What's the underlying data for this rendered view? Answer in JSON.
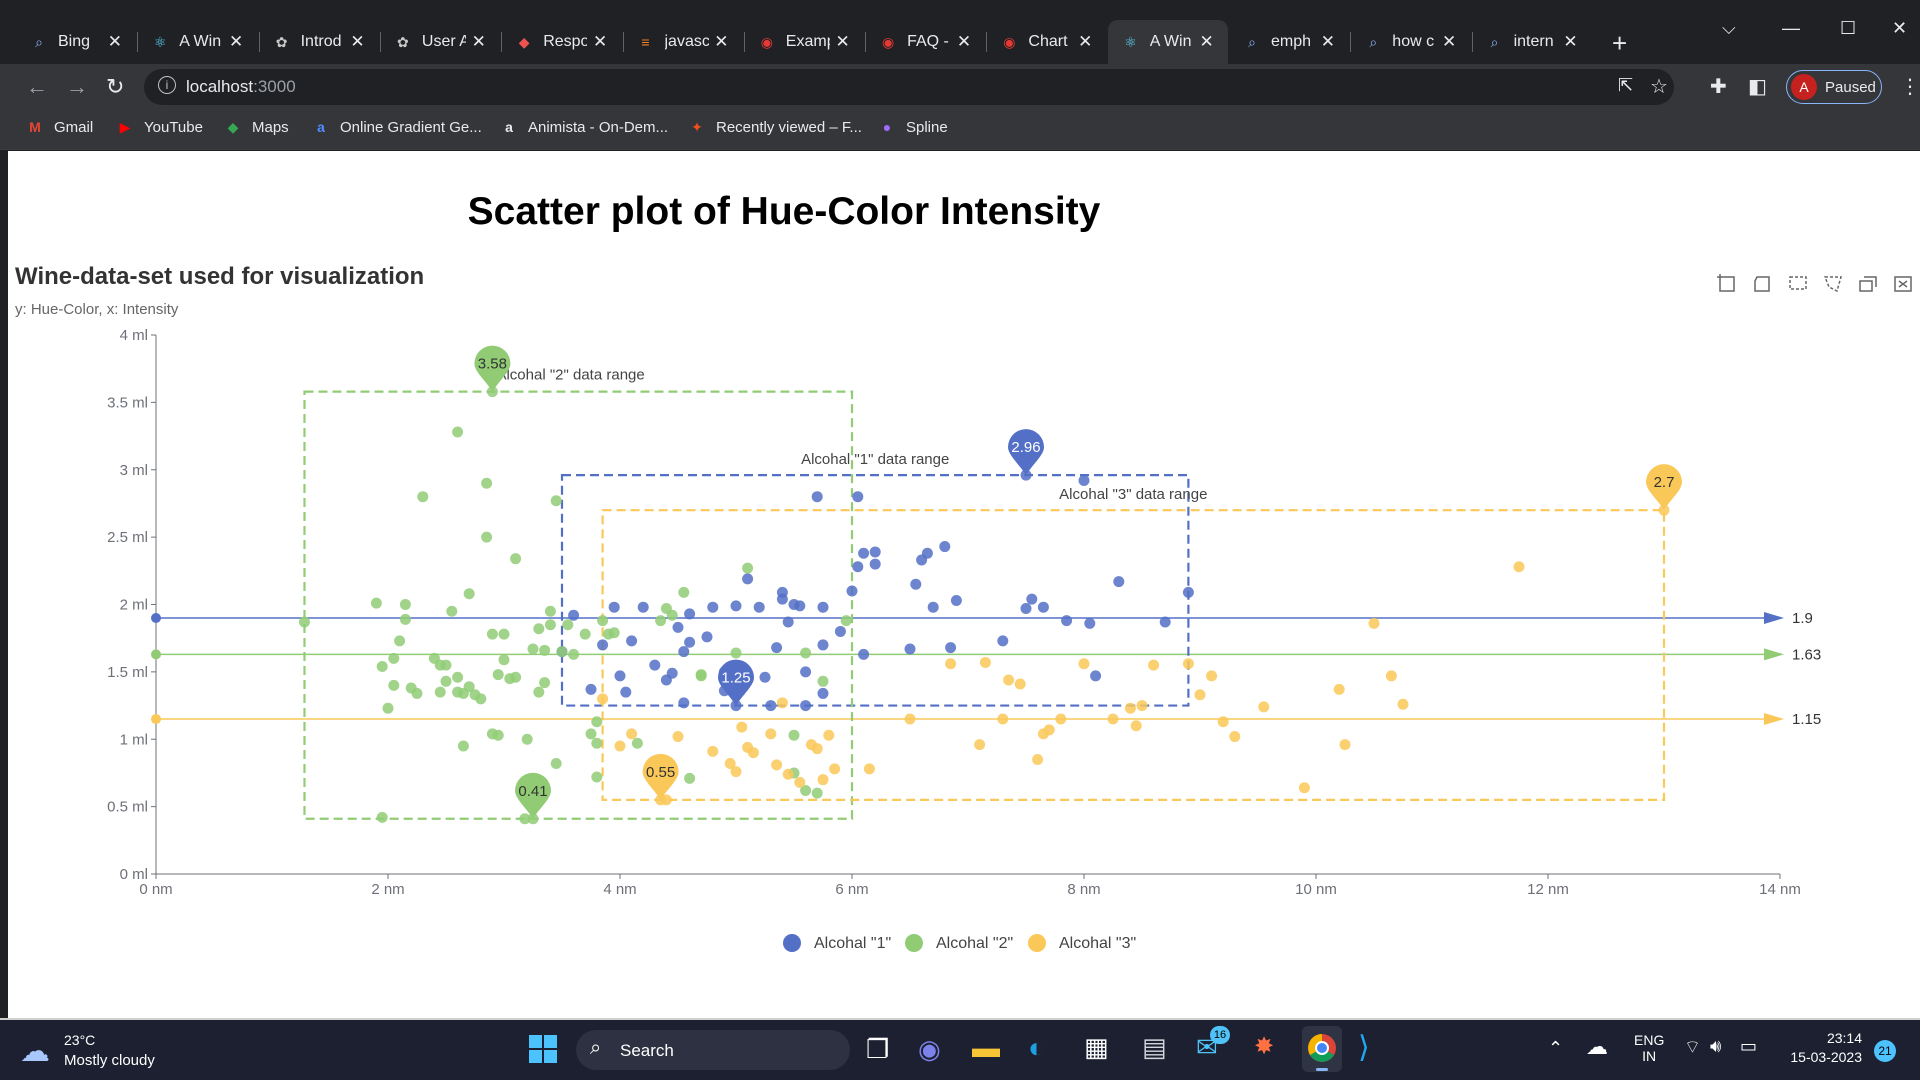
{
  "browser": {
    "tabs": [
      {
        "label": "Bing",
        "icon": "search-icon",
        "active": false
      },
      {
        "label": "A Win",
        "icon": "react-icon",
        "active": false
      },
      {
        "label": "Introd",
        "icon": "openai-icon",
        "active": false
      },
      {
        "label": "User A",
        "icon": "openai-icon",
        "active": false
      },
      {
        "label": "Respo",
        "icon": "cube-icon",
        "active": false
      },
      {
        "label": "javasc",
        "icon": "stackoverflow-icon",
        "active": false
      },
      {
        "label": "Examp",
        "icon": "q-icon",
        "active": false
      },
      {
        "label": "FAQ -",
        "icon": "q-icon",
        "active": false
      },
      {
        "label": "Chart",
        "icon": "q-icon",
        "active": false
      },
      {
        "label": "A Win",
        "icon": "react-icon",
        "active": true
      },
      {
        "label": "emph",
        "icon": "search-icon",
        "active": false
      },
      {
        "label": "how c",
        "icon": "search-icon",
        "active": false
      },
      {
        "label": "intern",
        "icon": "search-icon",
        "active": false
      }
    ],
    "url_host": "localhost",
    "url_port": ":3000",
    "profile_initial": "A",
    "profile_status": "Paused",
    "bookmarks": [
      {
        "label": "Gmail",
        "icon": "gmail-icon"
      },
      {
        "label": "YouTube",
        "icon": "youtube-icon"
      },
      {
        "label": "Maps",
        "icon": "maps-icon"
      },
      {
        "label": "Online Gradient Ge...",
        "icon": "gradient-icon"
      },
      {
        "label": "Animista - On-Dem...",
        "icon": "animista-icon"
      },
      {
        "label": "Recently viewed – F...",
        "icon": "figma-icon"
      },
      {
        "label": "Spline",
        "icon": "spline-icon"
      }
    ]
  },
  "page": {
    "heading": "Scatter plot of Hue-Color Intensity"
  },
  "chart_data": {
    "type": "scatter",
    "title": "Wine-data-set used for visualization",
    "subtitle": "y: Hue-Color,  x: Intensity",
    "xlim": [
      0,
      14
    ],
    "ylim": [
      0,
      4
    ],
    "x_ticks": [
      0,
      2,
      4,
      6,
      8,
      10,
      12,
      14
    ],
    "y_ticks": [
      0,
      0.5,
      1,
      1.5,
      2,
      2.5,
      3,
      3.5,
      4
    ],
    "x_unit": "nm",
    "y_unit": "ml",
    "grid": false,
    "legend_position": "bottom",
    "series": [
      {
        "name": "Alcohal \"1\"",
        "color": "#5470c6",
        "points": [
          [
            3.5,
            1.65
          ],
          [
            3.6,
            1.92
          ],
          [
            3.75,
            1.37
          ],
          [
            3.85,
            1.7
          ],
          [
            3.95,
            1.98
          ],
          [
            4.0,
            1.47
          ],
          [
            4.05,
            1.35
          ],
          [
            4.1,
            1.73
          ],
          [
            4.2,
            1.98
          ],
          [
            4.3,
            1.55
          ],
          [
            4.4,
            1.44
          ],
          [
            4.45,
            1.49
          ],
          [
            4.5,
            1.83
          ],
          [
            4.55,
            1.27
          ],
          [
            4.55,
            1.65
          ],
          [
            4.6,
            1.72
          ],
          [
            4.6,
            1.93
          ],
          [
            4.75,
            1.76
          ],
          [
            4.8,
            1.98
          ],
          [
            4.9,
            1.5
          ],
          [
            4.9,
            1.36
          ],
          [
            5.0,
            1.99
          ],
          [
            5.1,
            2.19
          ],
          [
            5.2,
            1.98
          ],
          [
            5.25,
            1.46
          ],
          [
            5.3,
            1.25
          ],
          [
            5.35,
            1.68
          ],
          [
            5.4,
            2.09
          ],
          [
            5.4,
            2.04
          ],
          [
            5.45,
            1.87
          ],
          [
            5.5,
            2.0
          ],
          [
            5.55,
            1.99
          ],
          [
            5.6,
            1.25
          ],
          [
            5.6,
            1.5
          ],
          [
            5.7,
            2.8
          ],
          [
            5.75,
            1.98
          ],
          [
            5.75,
            1.34
          ],
          [
            5.75,
            1.7
          ],
          [
            5.9,
            1.8
          ],
          [
            6.05,
            2.28
          ],
          [
            6.0,
            2.1
          ],
          [
            6.1,
            2.38
          ],
          [
            6.05,
            2.8
          ],
          [
            6.2,
            2.39
          ],
          [
            6.2,
            2.3
          ],
          [
            6.1,
            1.63
          ],
          [
            6.5,
            1.67
          ],
          [
            6.55,
            2.15
          ],
          [
            6.6,
            2.33
          ],
          [
            6.65,
            2.38
          ],
          [
            6.7,
            1.98
          ],
          [
            6.8,
            2.43
          ],
          [
            6.85,
            1.68
          ],
          [
            6.9,
            2.03
          ],
          [
            7.3,
            1.73
          ],
          [
            7.5,
            1.97
          ],
          [
            7.55,
            2.04
          ],
          [
            7.65,
            1.98
          ],
          [
            7.85,
            1.88
          ],
          [
            8.0,
            2.92
          ],
          [
            8.05,
            1.86
          ],
          [
            8.1,
            1.47
          ],
          [
            8.3,
            2.17
          ],
          [
            8.7,
            1.87
          ],
          [
            8.9,
            2.09
          ],
          [
            7.5,
            2.96
          ],
          [
            5.0,
            1.25
          ]
        ],
        "markers": [
          {
            "label": "2.96",
            "x": 7.5,
            "y": 2.96
          },
          {
            "label": "1.25",
            "x": 5.0,
            "y": 1.25
          }
        ],
        "range_box": {
          "label": "Alcohal \"1\" data range",
          "x": [
            3.5,
            8.9
          ],
          "y": [
            1.25,
            2.96
          ]
        },
        "mean_line": {
          "value": 1.9,
          "label": "1.9"
        }
      },
      {
        "name": "Alcohal \"2\"",
        "color": "#91cc75",
        "points": [
          [
            1.28,
            1.87
          ],
          [
            1.95,
            0.42
          ],
          [
            1.9,
            2.01
          ],
          [
            1.95,
            1.54
          ],
          [
            2.0,
            1.23
          ],
          [
            2.05,
            1.6
          ],
          [
            2.1,
            1.73
          ],
          [
            2.15,
            1.89
          ],
          [
            2.15,
            2.0
          ],
          [
            2.2,
            1.38
          ],
          [
            2.05,
            1.4
          ],
          [
            2.25,
            1.34
          ],
          [
            2.3,
            2.8
          ],
          [
            2.4,
            1.6
          ],
          [
            2.45,
            1.35
          ],
          [
            2.45,
            1.55
          ],
          [
            2.5,
            1.55
          ],
          [
            2.5,
            1.43
          ],
          [
            2.55,
            1.95
          ],
          [
            2.6,
            3.28
          ],
          [
            2.6,
            1.35
          ],
          [
            2.6,
            1.46
          ],
          [
            2.65,
            0.95
          ],
          [
            2.65,
            1.34
          ],
          [
            2.7,
            1.39
          ],
          [
            2.7,
            2.08
          ],
          [
            2.75,
            1.33
          ],
          [
            2.8,
            1.3
          ],
          [
            2.85,
            2.9
          ],
          [
            2.85,
            2.5
          ],
          [
            2.9,
            1.78
          ],
          [
            2.9,
            1.04
          ],
          [
            2.95,
            1.48
          ],
          [
            2.95,
            1.03
          ],
          [
            3.0,
            1.78
          ],
          [
            3.0,
            1.59
          ],
          [
            3.05,
            1.45
          ],
          [
            3.1,
            2.34
          ],
          [
            3.1,
            1.46
          ],
          [
            3.2,
            1.0
          ],
          [
            3.25,
            1.67
          ],
          [
            3.3,
            1.35
          ],
          [
            3.3,
            1.82
          ],
          [
            3.35,
            1.42
          ],
          [
            3.35,
            1.66
          ],
          [
            3.4,
            1.95
          ],
          [
            3.4,
            1.85
          ],
          [
            3.45,
            0.82
          ],
          [
            3.45,
            2.77
          ],
          [
            3.5,
            1.65
          ],
          [
            3.55,
            1.85
          ],
          [
            3.6,
            1.63
          ],
          [
            3.7,
            1.78
          ],
          [
            3.75,
            1.04
          ],
          [
            3.8,
            1.13
          ],
          [
            3.8,
            0.72
          ],
          [
            3.8,
            0.97
          ],
          [
            3.85,
            1.88
          ],
          [
            3.9,
            1.78
          ],
          [
            3.95,
            1.79
          ],
          [
            4.15,
            0.97
          ],
          [
            4.35,
            1.88
          ],
          [
            4.4,
            1.97
          ],
          [
            4.45,
            1.92
          ],
          [
            4.55,
            2.09
          ],
          [
            4.6,
            0.71
          ],
          [
            4.7,
            1.47
          ],
          [
            4.7,
            1.48
          ],
          [
            5.0,
            1.64
          ],
          [
            5.1,
            2.27
          ],
          [
            5.5,
            1.03
          ],
          [
            5.5,
            0.75
          ],
          [
            5.6,
            0.62
          ],
          [
            5.6,
            1.64
          ],
          [
            5.7,
            0.6
          ],
          [
            5.75,
            1.43
          ],
          [
            5.95,
            1.88
          ],
          [
            2.9,
            3.58
          ],
          [
            3.25,
            0.41
          ],
          [
            3.18,
            0.41
          ]
        ],
        "markers": [
          {
            "label": "3.58",
            "x": 2.9,
            "y": 3.58
          },
          {
            "label": "0.41",
            "x": 3.25,
            "y": 0.41
          }
        ],
        "range_box": {
          "label": "Alcohal \"2\" data range",
          "x": [
            1.28,
            6.0
          ],
          "y": [
            0.41,
            3.58
          ]
        },
        "mean_line": {
          "value": 1.63,
          "label": "1.63"
        }
      },
      {
        "name": "Alcohal \"3\"",
        "color": "#fac858",
        "points": [
          [
            3.85,
            1.3
          ],
          [
            4.0,
            0.95
          ],
          [
            4.1,
            1.04
          ],
          [
            4.35,
            0.7
          ],
          [
            4.4,
            0.55
          ],
          [
            4.5,
            1.02
          ],
          [
            4.8,
            0.91
          ],
          [
            4.95,
            0.82
          ],
          [
            5.0,
            0.76
          ],
          [
            5.05,
            1.09
          ],
          [
            5.1,
            0.94
          ],
          [
            5.15,
            0.9
          ],
          [
            5.3,
            1.04
          ],
          [
            5.35,
            0.81
          ],
          [
            5.4,
            1.27
          ],
          [
            5.45,
            0.74
          ],
          [
            5.55,
            0.68
          ],
          [
            5.65,
            0.96
          ],
          [
            5.7,
            0.93
          ],
          [
            5.75,
            0.7
          ],
          [
            5.8,
            1.03
          ],
          [
            5.85,
            0.78
          ],
          [
            6.15,
            0.78
          ],
          [
            6.5,
            1.15
          ],
          [
            6.85,
            1.56
          ],
          [
            7.1,
            0.96
          ],
          [
            7.15,
            1.57
          ],
          [
            7.3,
            1.15
          ],
          [
            7.35,
            1.44
          ],
          [
            7.45,
            1.41
          ],
          [
            7.6,
            0.85
          ],
          [
            7.65,
            1.04
          ],
          [
            7.7,
            1.07
          ],
          [
            7.8,
            1.15
          ],
          [
            8.0,
            1.56
          ],
          [
            8.25,
            1.15
          ],
          [
            8.4,
            1.23
          ],
          [
            8.45,
            1.1
          ],
          [
            8.5,
            1.25
          ],
          [
            8.6,
            1.55
          ],
          [
            8.9,
            1.56
          ],
          [
            9.0,
            1.33
          ],
          [
            9.1,
            1.47
          ],
          [
            9.2,
            1.13
          ],
          [
            9.3,
            1.02
          ],
          [
            9.55,
            1.24
          ],
          [
            9.9,
            0.64
          ],
          [
            10.2,
            1.37
          ],
          [
            10.25,
            0.96
          ],
          [
            10.5,
            1.86
          ],
          [
            10.65,
            1.47
          ],
          [
            10.75,
            1.26
          ],
          [
            11.75,
            2.28
          ],
          [
            13.0,
            2.7
          ],
          [
            4.35,
            0.55
          ]
        ],
        "markers": [
          {
            "label": "2.7",
            "x": 13.0,
            "y": 2.7
          },
          {
            "label": "0.55",
            "x": 4.35,
            "y": 0.55
          }
        ],
        "range_box": {
          "label": "Alcohal \"3\" data range",
          "x": [
            3.85,
            13.0
          ],
          "y": [
            0.55,
            2.7
          ]
        },
        "mean_line": {
          "value": 1.15,
          "label": "1.15"
        }
      }
    ]
  },
  "taskbar": {
    "weather_temp": "23°C",
    "weather_desc": "Mostly cloudy",
    "search_placeholder": "Search",
    "mail_badge": "16",
    "lang_top": "ENG",
    "lang_bottom": "IN",
    "time": "23:14",
    "date": "15-03-2023",
    "notif_count": "21"
  }
}
